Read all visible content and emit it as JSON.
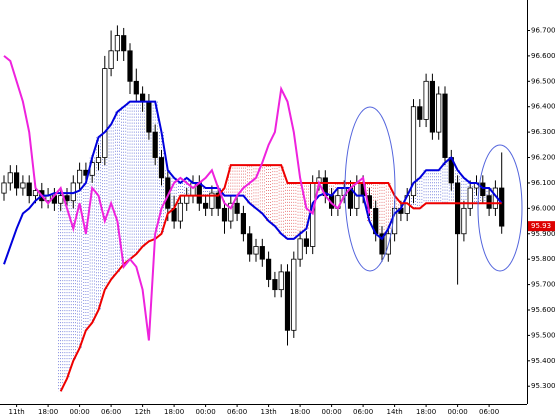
{
  "chart_data": {
    "type": "candlestick",
    "ylim": [
      95.23,
      96.82
    ],
    "yticks": [
      {
        "value": 96.7,
        "label": "96.700"
      },
      {
        "value": 96.6,
        "label": "96.600"
      },
      {
        "value": 96.5,
        "label": "96.500"
      },
      {
        "value": 96.4,
        "label": "96.400"
      },
      {
        "value": 96.3,
        "label": "96.300"
      },
      {
        "value": 96.2,
        "label": "96.200"
      },
      {
        "value": 96.1,
        "label": "96.100"
      },
      {
        "value": 96.0,
        "label": "96.000"
      },
      {
        "value": 95.9,
        "label": "95.900"
      },
      {
        "value": 95.8,
        "label": "95.800"
      },
      {
        "value": 95.7,
        "label": "95.700"
      },
      {
        "value": 95.6,
        "label": "95.600"
      },
      {
        "value": 95.5,
        "label": "95.500"
      },
      {
        "value": 95.4,
        "label": "95.400"
      },
      {
        "value": 95.3,
        "label": "95.300"
      }
    ],
    "categories": [
      null,
      null,
      "11th",
      null,
      null,
      null,
      null,
      "18:00",
      null,
      null,
      null,
      null,
      "00:00",
      null,
      null,
      null,
      null,
      "06:00",
      null,
      null,
      null,
      null,
      "12th",
      null,
      null,
      null,
      null,
      "18:00",
      null,
      null,
      null,
      null,
      "00:00",
      null,
      null,
      null,
      null,
      "06:00",
      null,
      null,
      null,
      null,
      "13th",
      null,
      null,
      null,
      null,
      "18:00",
      null,
      null,
      null,
      null,
      "00:00",
      null,
      null,
      null,
      null,
      "06:00",
      null,
      null,
      null,
      null,
      "14th",
      null,
      null,
      null,
      null,
      "18:00",
      null,
      null,
      null,
      null,
      "00:00",
      null,
      null,
      null,
      null,
      "06:00",
      null,
      null
    ],
    "candles": [
      [
        96.06,
        96.13,
        96.03,
        96.1
      ],
      [
        96.1,
        96.17,
        96.07,
        96.14
      ],
      [
        96.14,
        96.17,
        96.05,
        96.08
      ],
      [
        96.08,
        96.13,
        96.05,
        96.1
      ],
      [
        96.1,
        96.13,
        96.02,
        96.05
      ],
      [
        96.05,
        96.1,
        96.02,
        96.07
      ],
      [
        96.07,
        96.1,
        96.0,
        96.03
      ],
      [
        96.03,
        96.08,
        96.0,
        96.05
      ],
      [
        96.05,
        96.08,
        95.99,
        96.02
      ],
      [
        96.02,
        96.08,
        95.99,
        96.05
      ],
      [
        96.05,
        96.08,
        96.0,
        96.03
      ],
      [
        96.03,
        96.13,
        96.0,
        96.1
      ],
      [
        96.1,
        96.18,
        96.07,
        96.15
      ],
      [
        96.15,
        96.18,
        96.1,
        96.13
      ],
      [
        96.13,
        96.21,
        96.1,
        96.18
      ],
      [
        96.18,
        96.25,
        96.15,
        96.2
      ],
      [
        96.2,
        96.6,
        96.17,
        96.55
      ],
      [
        96.55,
        96.7,
        96.52,
        96.62
      ],
      [
        96.62,
        96.72,
        96.58,
        96.68
      ],
      [
        96.68,
        96.71,
        96.58,
        96.62
      ],
      [
        96.62,
        96.65,
        96.45,
        96.5
      ],
      [
        96.5,
        96.55,
        96.42,
        96.45
      ],
      [
        96.45,
        96.48,
        96.38,
        96.42
      ],
      [
        96.42,
        96.45,
        96.27,
        96.3
      ],
      [
        96.3,
        96.33,
        96.17,
        96.2
      ],
      [
        96.2,
        96.23,
        96.09,
        96.12
      ],
      [
        96.12,
        96.15,
        95.95,
        96.0
      ],
      [
        96.0,
        96.05,
        95.92,
        95.95
      ],
      [
        95.95,
        96.05,
        95.92,
        96.02
      ],
      [
        96.02,
        96.08,
        95.99,
        96.05
      ],
      [
        96.05,
        96.13,
        96.02,
        96.1
      ],
      [
        96.1,
        96.13,
        95.99,
        96.02
      ],
      [
        96.02,
        96.05,
        95.97,
        96.0
      ],
      [
        96.0,
        96.09,
        95.97,
        96.06
      ],
      [
        96.06,
        96.09,
        95.97,
        96.0
      ],
      [
        96.0,
        96.03,
        95.9,
        95.95
      ],
      [
        95.95,
        96.05,
        95.92,
        96.02
      ],
      [
        96.02,
        96.05,
        95.95,
        95.98
      ],
      [
        95.98,
        96.01,
        95.87,
        95.9
      ],
      [
        95.9,
        95.93,
        95.79,
        95.82
      ],
      [
        95.82,
        95.88,
        95.79,
        95.85
      ],
      [
        95.85,
        95.88,
        95.77,
        95.8
      ],
      [
        95.8,
        95.83,
        95.69,
        95.72
      ],
      [
        95.72,
        95.75,
        95.65,
        95.68
      ],
      [
        95.68,
        95.78,
        95.65,
        95.75
      ],
      [
        95.75,
        95.78,
        95.46,
        95.52
      ],
      [
        95.52,
        95.83,
        95.49,
        95.8
      ],
      [
        95.8,
        95.91,
        95.77,
        95.88
      ],
      [
        95.88,
        95.91,
        95.82,
        95.85
      ],
      [
        95.85,
        96.13,
        95.82,
        96.1
      ],
      [
        96.1,
        96.15,
        96.07,
        96.12
      ],
      [
        96.12,
        96.15,
        96.02,
        96.05
      ],
      [
        96.05,
        96.08,
        95.97,
        96.0
      ],
      [
        96.0,
        96.08,
        95.97,
        96.05
      ],
      [
        96.05,
        96.11,
        96.02,
        96.08
      ],
      [
        96.08,
        96.11,
        95.97,
        96.0
      ],
      [
        96.0,
        96.13,
        95.97,
        96.1
      ],
      [
        96.1,
        96.13,
        96.02,
        96.05
      ],
      [
        96.05,
        96.08,
        95.97,
        96.0
      ],
      [
        96.0,
        96.03,
        95.87,
        95.9
      ],
      [
        95.9,
        95.93,
        95.79,
        95.82
      ],
      [
        95.82,
        95.93,
        95.79,
        95.9
      ],
      [
        95.9,
        96.03,
        95.87,
        96.0
      ],
      [
        96.0,
        96.03,
        95.95,
        95.98
      ],
      [
        95.98,
        96.08,
        95.95,
        96.05
      ],
      [
        96.05,
        96.43,
        96.02,
        96.4
      ],
      [
        96.4,
        96.43,
        96.32,
        96.35
      ],
      [
        96.35,
        96.53,
        96.32,
        96.5
      ],
      [
        96.5,
        96.53,
        96.27,
        96.3
      ],
      [
        96.3,
        96.48,
        96.27,
        96.45
      ],
      [
        96.45,
        96.48,
        96.17,
        96.2
      ],
      [
        96.2,
        96.23,
        96.07,
        96.1
      ],
      [
        96.1,
        96.13,
        95.7,
        95.9
      ],
      [
        95.9,
        96.03,
        95.87,
        96.0
      ],
      [
        96.0,
        96.11,
        95.97,
        96.08
      ],
      [
        96.08,
        96.13,
        96.05,
        96.1
      ],
      [
        96.1,
        96.13,
        96.02,
        96.05
      ],
      [
        96.05,
        96.08,
        95.97,
        96.0
      ],
      [
        96.0,
        96.11,
        95.97,
        96.08
      ],
      [
        96.08,
        96.22,
        95.9,
        95.93
      ]
    ],
    "series": [
      {
        "color": "#0000dd",
        "values": [
          95.78,
          95.85,
          95.92,
          95.98,
          96.0,
          96.03,
          96.05,
          96.05,
          96.06,
          96.06,
          96.06,
          96.06,
          96.07,
          96.1,
          96.2,
          96.28,
          96.3,
          96.33,
          96.38,
          96.4,
          96.42,
          96.42,
          96.42,
          96.42,
          96.42,
          96.3,
          96.15,
          96.12,
          96.1,
          96.12,
          96.1,
          96.1,
          96.08,
          96.08,
          96.08,
          96.05,
          96.05,
          96.05,
          96.05,
          96.02,
          96.0,
          95.98,
          95.95,
          95.93,
          95.9,
          95.88,
          95.88,
          95.9,
          95.92,
          96.02,
          96.05,
          96.06,
          96.05,
          96.08,
          96.08,
          96.08,
          96.05,
          96.05,
          95.95,
          95.9,
          95.88,
          95.92,
          95.98,
          96.0,
          96.05,
          96.1,
          96.12,
          96.15,
          96.15,
          96.15,
          96.18,
          96.2,
          96.15,
          96.12,
          96.1,
          96.1,
          96.08,
          96.08,
          96.05,
          96.02
        ]
      },
      {
        "color": "#ee0000",
        "values": [
          null,
          null,
          null,
          null,
          null,
          null,
          null,
          null,
          null,
          95.28,
          95.33,
          95.4,
          95.45,
          95.52,
          95.55,
          95.6,
          95.68,
          95.72,
          95.75,
          95.78,
          95.8,
          95.82,
          95.85,
          95.87,
          95.88,
          95.9,
          95.98,
          96.0,
          96.05,
          96.05,
          96.05,
          96.05,
          96.05,
          96.05,
          96.05,
          96.08,
          96.17,
          96.17,
          96.17,
          96.17,
          96.17,
          96.17,
          96.17,
          96.17,
          96.17,
          96.1,
          96.1,
          96.1,
          96.1,
          96.1,
          96.1,
          96.1,
          96.1,
          96.1,
          96.1,
          96.1,
          96.1,
          96.1,
          96.1,
          96.1,
          96.1,
          96.1,
          96.05,
          96.02,
          96.02,
          96.0,
          96.0,
          96.02,
          96.02,
          96.02,
          96.02,
          96.02,
          96.02,
          96.02,
          96.02,
          96.02,
          96.02,
          96.02,
          96.02,
          96.02
        ]
      },
      {
        "color": "#ee22dd",
        "values": [
          96.6,
          96.58,
          96.5,
          96.42,
          96.3,
          96.08,
          96.05,
          96.02,
          96.05,
          96.08,
          96.0,
          95.92,
          96.02,
          95.9,
          96.08,
          96.05,
          95.95,
          96.02,
          95.95,
          95.77,
          95.8,
          95.77,
          95.68,
          95.48,
          95.9,
          96.0,
          96.05,
          96.1,
          96.12,
          96.1,
          96.08,
          96.1,
          96.12,
          96.15,
          96.08,
          96.02,
          96.0,
          96.05,
          96.08,
          96.1,
          96.12,
          96.18,
          96.25,
          96.3,
          96.47,
          96.42,
          96.3,
          96.12,
          96.0,
          95.98,
          96.1,
          96.05,
          96.02,
          96.0,
          96.05,
          96.08,
          96.1,
          96.12,
          95.98,
          null,
          null,
          null,
          null,
          null,
          null,
          null,
          null,
          null,
          null,
          null,
          null,
          null,
          null,
          null,
          null,
          null,
          null,
          null,
          null,
          null
        ]
      }
    ],
    "last_price_label": "95.93"
  }
}
